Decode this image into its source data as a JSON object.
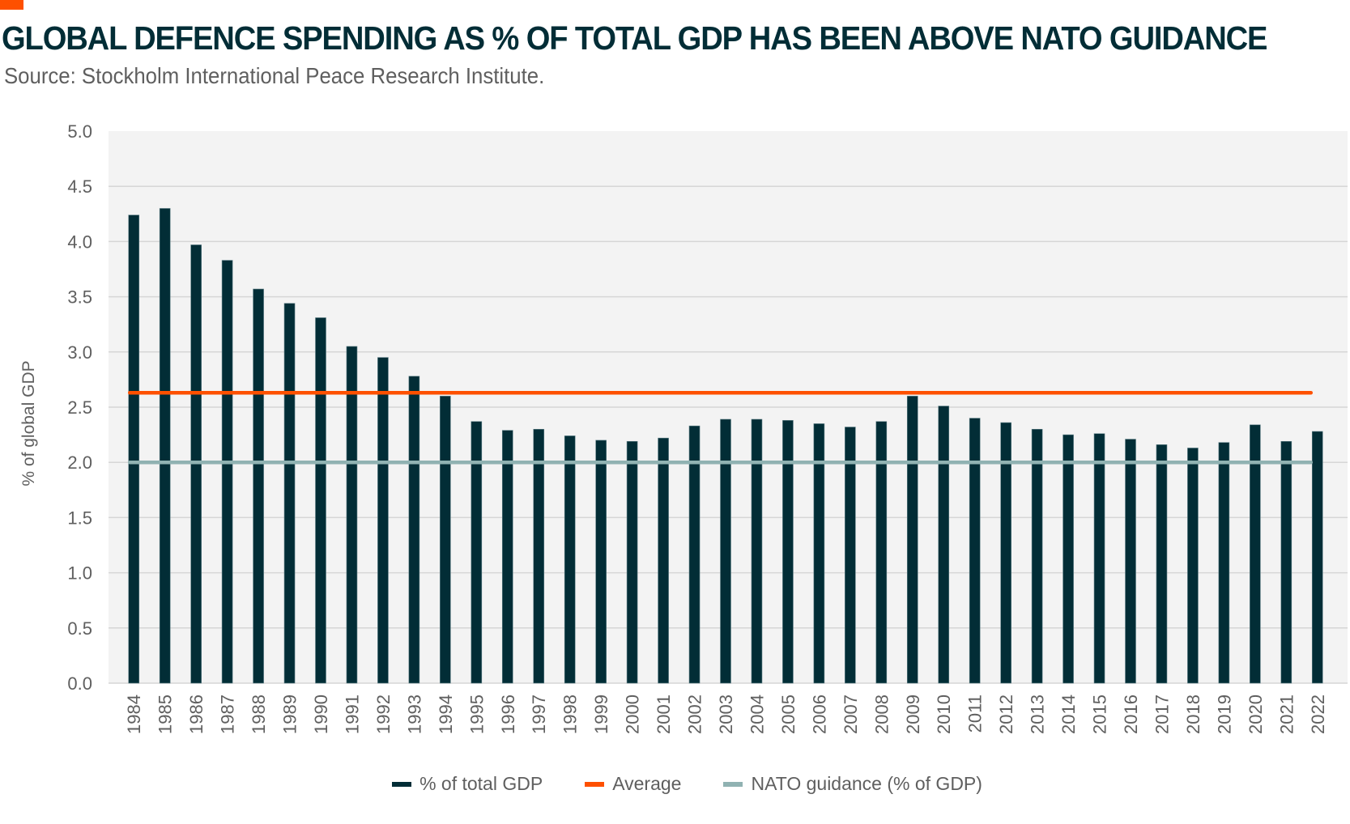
{
  "header": {
    "title": "GLOBAL DEFENCE SPENDING AS % OF TOTAL GDP HAS BEEN ABOVE NATO GUIDANCE",
    "source": "Source: Stockholm International Peace Research Institute."
  },
  "colors": {
    "accent": "#fe5000",
    "bar": "#022d36",
    "average": "#fe5000",
    "nato": "#90b2b2",
    "plot_bg": "#f3f3f3",
    "grid": "#d6d6d6",
    "title": "#022d36",
    "text": "#5f5f5f"
  },
  "chart_data": {
    "type": "bar",
    "title": "GLOBAL DEFENCE SPENDING AS % OF TOTAL GDP HAS BEEN ABOVE NATO GUIDANCE",
    "subtitle": "Source: Stockholm International Peace Research Institute.",
    "xlabel": "",
    "ylabel": "% of global GDP",
    "ylim": [
      0,
      5
    ],
    "yticks": [
      "0.0",
      "0.5",
      "1.0",
      "1.5",
      "2.0",
      "2.5",
      "3.0",
      "3.5",
      "4.0",
      "4.5",
      "5.0"
    ],
    "grid": true,
    "legend_position": "bottom",
    "categories": [
      "1984",
      "1985",
      "1986",
      "1987",
      "1988",
      "1989",
      "1990",
      "1991",
      "1992",
      "1993",
      "1994",
      "1995",
      "1996",
      "1997",
      "1998",
      "1999",
      "2000",
      "2001",
      "2002",
      "2003",
      "2004",
      "2005",
      "2006",
      "2007",
      "2008",
      "2009",
      "2010",
      "2011",
      "2012",
      "2013",
      "2014",
      "2015",
      "2016",
      "2017",
      "2018",
      "2019",
      "2020",
      "2021",
      "2022"
    ],
    "series": [
      {
        "name": "% of total GDP",
        "type": "bar",
        "values": [
          4.24,
          4.3,
          3.97,
          3.83,
          3.57,
          3.44,
          3.31,
          3.05,
          2.95,
          2.78,
          2.6,
          2.37,
          2.29,
          2.3,
          2.24,
          2.2,
          2.19,
          2.22,
          2.33,
          2.39,
          2.39,
          2.38,
          2.35,
          2.32,
          2.37,
          2.6,
          2.51,
          2.4,
          2.36,
          2.3,
          2.25,
          2.26,
          2.21,
          2.16,
          2.13,
          2.18,
          2.34,
          2.19,
          2.28
        ]
      },
      {
        "name": "Average",
        "type": "line",
        "value": 2.63
      },
      {
        "name": "NATO guidance (% of GDP)",
        "type": "line",
        "value": 2.0
      }
    ]
  }
}
